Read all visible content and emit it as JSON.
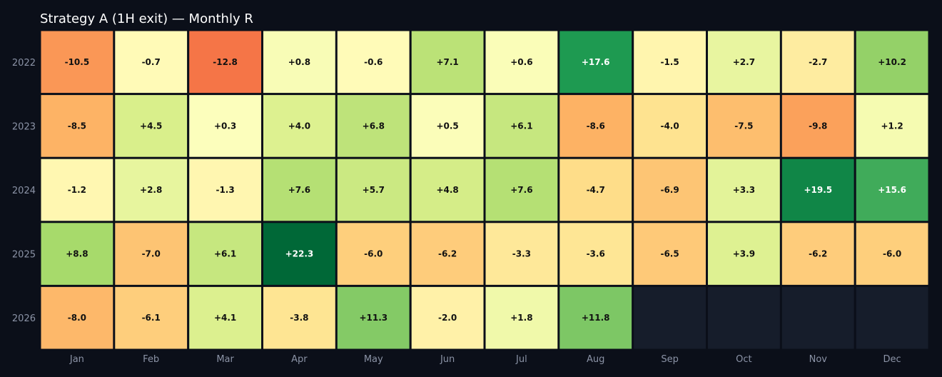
{
  "chart_data": {
    "type": "heatmap",
    "title": "Strategy A (1H exit) — Monthly R",
    "x_categories": [
      "Jan",
      "Feb",
      "Mar",
      "Apr",
      "May",
      "Jun",
      "Jul",
      "Aug",
      "Sep",
      "Oct",
      "Nov",
      "Dec"
    ],
    "y_categories": [
      "2022",
      "2023",
      "2024",
      "2025",
      "2026"
    ],
    "values": [
      [
        -10.5,
        -0.7,
        -12.8,
        0.8,
        -0.6,
        7.1,
        0.6,
        17.6,
        -1.5,
        2.7,
        -2.7,
        10.2
      ],
      [
        -8.5,
        4.5,
        0.3,
        4.0,
        6.8,
        0.5,
        6.1,
        -8.6,
        -4.0,
        -7.5,
        -9.8,
        1.2
      ],
      [
        -1.2,
        2.8,
        -1.3,
        7.6,
        5.7,
        4.8,
        7.6,
        -4.7,
        -6.9,
        3.3,
        19.5,
        15.6
      ],
      [
        8.8,
        -7.0,
        6.1,
        22.3,
        -6.0,
        -6.2,
        -3.3,
        -3.6,
        -6.5,
        3.9,
        -6.2,
        -6.0
      ],
      [
        -8.0,
        -6.1,
        4.1,
        -3.8,
        11.3,
        -2.0,
        1.8,
        11.8,
        null,
        null,
        null,
        null
      ]
    ],
    "labels": [
      [
        "-10.5",
        "-0.7",
        "-12.8",
        "+0.8",
        "-0.6",
        "+7.1",
        "+0.6",
        "+17.6",
        "-1.5",
        "+2.7",
        "-2.7",
        "+10.2"
      ],
      [
        "-8.5",
        "+4.5",
        "+0.3",
        "+4.0",
        "+6.8",
        "+0.5",
        "+6.1",
        "-8.6",
        "-4.0",
        "-7.5",
        "-9.8",
        "+1.2"
      ],
      [
        "-1.2",
        "+2.8",
        "-1.3",
        "+7.6",
        "+5.7",
        "+4.8",
        "+7.6",
        "-4.7",
        "-6.9",
        "+3.3",
        "+19.5",
        "+15.6"
      ],
      [
        "+8.8",
        "-7.0",
        "+6.1",
        "+22.3",
        "-6.0",
        "-6.2",
        "-3.3",
        "-3.6",
        "-6.5",
        "+3.9",
        "-6.2",
        "-6.0"
      ],
      [
        "-8.0",
        "-6.1",
        "+4.1",
        "-3.8",
        "+11.3",
        "-2.0",
        "+1.8",
        "+11.8",
        "",
        "",
        "",
        ""
      ]
    ],
    "colormap": "RdYlGn",
    "value_range": [
      -22.3,
      22.3
    ],
    "empty_color": "#161d2b",
    "background": "#0b0f19",
    "text_color": "#8b93a6",
    "title_color": "#ffffff"
  }
}
